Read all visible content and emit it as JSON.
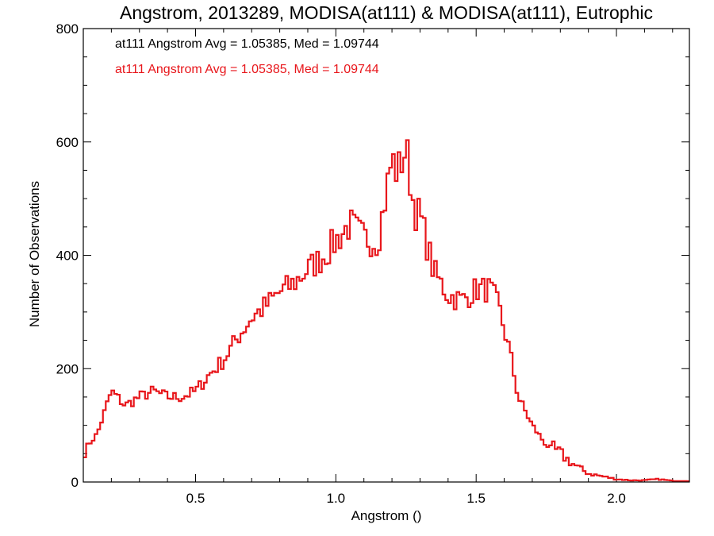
{
  "chart_data": {
    "type": "line",
    "style": "histogram-step",
    "title": "Angstrom, 2013289, MODISA(at111) & MODISA(at111), Eutrophic",
    "xlabel": "Angstrom ()",
    "ylabel": "Number of Observations",
    "xlim": [
      0.1,
      2.26
    ],
    "ylim": [
      0,
      800
    ],
    "x_ticks": [
      0.5,
      1.0,
      1.5,
      2.0
    ],
    "x_tick_labels": [
      "0.5",
      "1.0",
      "1.5",
      "2.0"
    ],
    "y_ticks": [
      0,
      200,
      400,
      600,
      800
    ],
    "y_tick_labels": [
      "0",
      "200",
      "400",
      "600",
      "800"
    ],
    "grid": false,
    "annotations": [
      {
        "text": "at111 Angstrom Avg = 1.05385, Med = 1.09744",
        "color": "#000000"
      },
      {
        "text": "at111 Angstrom Avg = 1.05385, Med = 1.09744",
        "color": "#e8161b"
      }
    ],
    "series": [
      {
        "color": "#e8161b",
        "x": [
          0.1,
          0.15,
          0.2,
          0.25,
          0.3,
          0.35,
          0.4,
          0.45,
          0.5,
          0.55,
          0.6,
          0.65,
          0.7,
          0.75,
          0.8,
          0.85,
          0.9,
          0.95,
          1.0,
          1.05,
          1.1,
          1.15,
          1.2,
          1.22,
          1.25,
          1.28,
          1.3,
          1.35,
          1.4,
          1.45,
          1.5,
          1.55,
          1.58,
          1.62,
          1.65,
          1.7,
          1.75,
          1.8,
          1.85,
          1.9,
          1.95,
          2.0,
          2.05,
          2.1,
          2.15,
          2.2,
          2.26
        ],
        "values": [
          55,
          85,
          160,
          135,
          150,
          160,
          150,
          150,
          160,
          190,
          215,
          255,
          290,
          310,
          335,
          350,
          375,
          395,
          425,
          455,
          430,
          425,
          570,
          545,
          590,
          480,
          470,
          370,
          330,
          320,
          340,
          340,
          310,
          230,
          150,
          100,
          65,
          50,
          30,
          15,
          10,
          5,
          3,
          3,
          5,
          2,
          2
        ]
      }
    ]
  }
}
